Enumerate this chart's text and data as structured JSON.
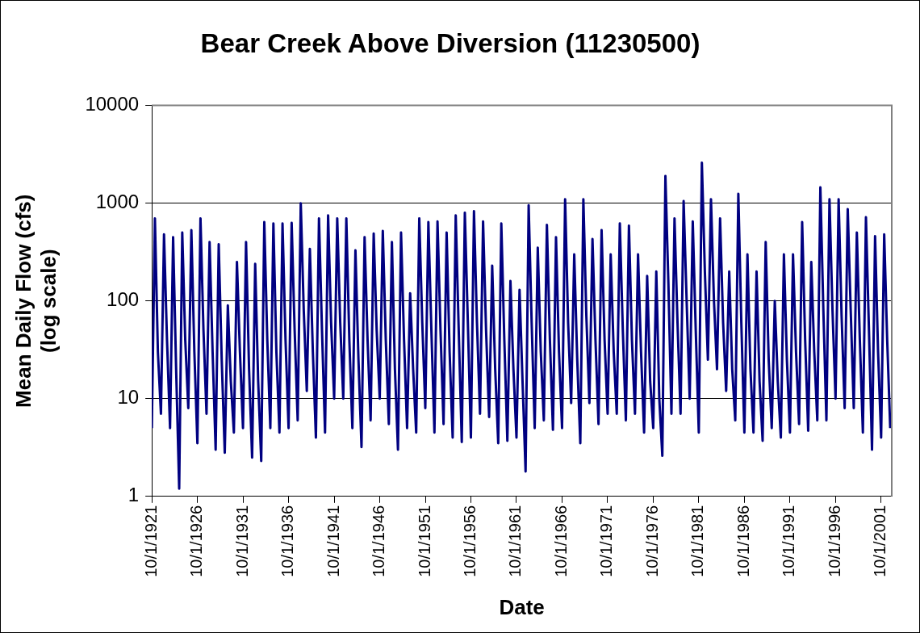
{
  "chart_data": {
    "type": "line",
    "title": "Bear Creek Above Diversion (11230500)",
    "xlabel": "Date",
    "ylabel": "Mean Daily Flow (cfs)\n(log scale)",
    "log": "y",
    "grid": "y",
    "legend": false,
    "marker": "none",
    "line_style": "solid",
    "xlim": [
      "1921-10-01",
      "2002-12-01"
    ],
    "xticks": [
      {
        "value": "1921-10-01",
        "label": "10/1/1921"
      },
      {
        "value": "1926-10-01",
        "label": "10/1/1926"
      },
      {
        "value": "1931-10-01",
        "label": "10/1/1931"
      },
      {
        "value": "1936-10-01",
        "label": "10/1/1936"
      },
      {
        "value": "1941-10-01",
        "label": "10/1/1941"
      },
      {
        "value": "1946-10-01",
        "label": "10/1/1946"
      },
      {
        "value": "1951-10-01",
        "label": "10/1/1951"
      },
      {
        "value": "1956-10-01",
        "label": "10/1/1956"
      },
      {
        "value": "1961-10-01",
        "label": "10/1/1961"
      },
      {
        "value": "1966-10-01",
        "label": "10/1/1966"
      },
      {
        "value": "1971-10-01",
        "label": "10/1/1971"
      },
      {
        "value": "1976-10-01",
        "label": "10/1/1976"
      },
      {
        "value": "1981-10-01",
        "label": "10/1/1981"
      },
      {
        "value": "1986-10-01",
        "label": "10/1/1986"
      },
      {
        "value": "1991-10-01",
        "label": "10/1/1991"
      },
      {
        "value": "1996-10-01",
        "label": "10/1/1996"
      },
      {
        "value": "2001-10-01",
        "label": "10/1/2001"
      }
    ],
    "ylim": [
      1,
      10000
    ],
    "yticks": [
      1,
      10,
      100,
      1000,
      10000
    ],
    "series": [
      {
        "color": "#000080",
        "x": [
          "1921-10",
          "1922-02",
          "1922-06",
          "1922-10",
          "1923-02",
          "1923-06",
          "1923-10",
          "1924-02",
          "1924-06",
          "1924-10",
          "1925-02",
          "1925-06",
          "1925-10",
          "1926-02",
          "1926-06",
          "1926-10",
          "1927-02",
          "1927-06",
          "1927-10",
          "1928-02",
          "1928-06",
          "1928-10",
          "1929-02",
          "1929-06",
          "1929-10",
          "1930-02",
          "1930-06",
          "1930-10",
          "1931-02",
          "1931-06",
          "1931-10",
          "1932-02",
          "1932-06",
          "1932-10",
          "1933-02",
          "1933-06",
          "1933-10",
          "1934-02",
          "1934-06",
          "1934-10",
          "1935-02",
          "1935-06",
          "1935-10",
          "1936-02",
          "1936-06",
          "1936-10",
          "1937-02",
          "1937-06",
          "1937-10",
          "1938-02",
          "1938-06",
          "1938-10",
          "1939-02",
          "1939-06",
          "1939-10",
          "1940-02",
          "1940-06",
          "1940-10",
          "1941-02",
          "1941-06",
          "1941-10",
          "1942-02",
          "1942-06",
          "1942-10",
          "1943-02",
          "1943-06",
          "1943-10",
          "1944-02",
          "1944-06",
          "1944-10",
          "1945-02",
          "1945-06",
          "1945-10",
          "1946-02",
          "1946-06",
          "1946-10",
          "1947-02",
          "1947-06",
          "1947-10",
          "1948-02",
          "1948-06",
          "1948-10",
          "1949-02",
          "1949-06",
          "1949-10",
          "1950-02",
          "1950-06",
          "1950-10",
          "1951-02",
          "1951-06",
          "1951-10",
          "1952-02",
          "1952-06",
          "1952-10",
          "1953-02",
          "1953-06",
          "1953-10",
          "1954-02",
          "1954-06",
          "1954-10",
          "1955-02",
          "1955-06",
          "1955-10",
          "1956-02",
          "1956-06",
          "1956-10",
          "1957-02",
          "1957-06",
          "1957-10",
          "1958-02",
          "1958-06",
          "1958-10",
          "1959-02",
          "1959-06",
          "1959-10",
          "1960-02",
          "1960-06",
          "1960-10",
          "1961-02",
          "1961-06",
          "1961-10",
          "1962-02",
          "1962-06",
          "1962-10",
          "1963-02",
          "1963-06",
          "1963-10",
          "1964-02",
          "1964-06",
          "1964-10",
          "1965-02",
          "1965-06",
          "1965-10",
          "1966-02",
          "1966-06",
          "1966-10",
          "1967-02",
          "1967-06",
          "1967-10",
          "1968-02",
          "1968-06",
          "1968-10",
          "1969-02",
          "1969-06",
          "1969-10",
          "1970-02",
          "1970-06",
          "1970-10",
          "1971-02",
          "1971-06",
          "1971-10",
          "1972-02",
          "1972-06",
          "1972-10",
          "1973-02",
          "1973-06",
          "1973-10",
          "1974-02",
          "1974-06",
          "1974-10",
          "1975-02",
          "1975-06",
          "1975-10",
          "1976-02",
          "1976-06",
          "1976-10",
          "1977-02",
          "1977-06",
          "1977-10",
          "1978-02",
          "1978-06",
          "1978-10",
          "1979-02",
          "1979-06",
          "1979-10",
          "1980-02",
          "1980-06",
          "1980-10",
          "1981-02",
          "1981-06",
          "1981-10",
          "1982-02",
          "1982-06",
          "1982-10",
          "1983-02",
          "1983-06",
          "1983-10",
          "1984-02",
          "1984-06",
          "1984-10",
          "1985-02",
          "1985-06",
          "1985-10",
          "1986-02",
          "1986-06",
          "1986-10",
          "1987-02",
          "1987-06",
          "1987-10",
          "1988-02",
          "1988-06",
          "1988-10",
          "1989-02",
          "1989-06",
          "1989-10",
          "1990-02",
          "1990-06",
          "1990-10",
          "1991-02",
          "1991-06",
          "1991-10",
          "1992-02",
          "1992-06",
          "1992-10",
          "1993-02",
          "1993-06",
          "1993-10",
          "1994-02",
          "1994-06",
          "1994-10",
          "1995-02",
          "1995-06",
          "1995-10",
          "1996-02",
          "1996-06",
          "1996-10",
          "1997-02",
          "1997-06",
          "1997-10",
          "1998-02",
          "1998-06",
          "1998-10",
          "1999-02",
          "1999-06",
          "1999-10",
          "2000-02",
          "2000-06",
          "2000-10",
          "2001-02",
          "2001-06",
          "2001-10",
          "2002-02",
          "2002-06",
          "2002-10"
        ],
        "values": [
          5,
          700,
          30,
          7,
          480,
          40,
          5,
          450,
          20,
          1.2,
          500,
          40,
          8,
          530,
          30,
          3.5,
          700,
          50,
          7,
          400,
          30,
          3,
          380,
          25,
          2.8,
          90,
          15,
          4.5,
          250,
          30,
          5,
          400,
          20,
          2.5,
          240,
          15,
          2.3,
          640,
          40,
          5,
          620,
          30,
          4.5,
          620,
          40,
          5,
          630,
          50,
          6,
          1000,
          80,
          12,
          340,
          30,
          4,
          700,
          50,
          4.5,
          750,
          60,
          10,
          700,
          60,
          10,
          700,
          40,
          5,
          330,
          25,
          3.2,
          450,
          40,
          6,
          490,
          50,
          10,
          520,
          40,
          5.5,
          400,
          20,
          3,
          500,
          40,
          5,
          120,
          20,
          4.5,
          700,
          60,
          8,
          640,
          50,
          4.5,
          650,
          50,
          5.5,
          500,
          30,
          4,
          750,
          50,
          3.6,
          800,
          60,
          4,
          830,
          60,
          7,
          650,
          50,
          6.5,
          230,
          20,
          3.5,
          620,
          40,
          3.7,
          160,
          20,
          4,
          130,
          15,
          1.8,
          950,
          60,
          5,
          350,
          30,
          6,
          600,
          40,
          4.8,
          450,
          30,
          5,
          1100,
          60,
          9,
          300,
          25,
          3.5,
          1100,
          70,
          9,
          430,
          40,
          5.5,
          530,
          40,
          7,
          300,
          30,
          7,
          620,
          50,
          6,
          590,
          40,
          7,
          300,
          30,
          4.5,
          180,
          15,
          5,
          200,
          10,
          2.6,
          1900,
          150,
          7,
          700,
          60,
          7,
          1050,
          100,
          10,
          650,
          50,
          4.5,
          2600,
          200,
          25,
          1100,
          100,
          20,
          700,
          60,
          12,
          200,
          20,
          6,
          1250,
          60,
          4.5,
          300,
          20,
          4.5,
          200,
          15,
          3.7,
          400,
          25,
          5,
          100,
          15,
          4,
          300,
          25,
          4.5,
          300,
          30,
          5.5,
          640,
          40,
          4.7,
          250,
          30,
          6,
          1450,
          80,
          6,
          1100,
          80,
          10,
          1100,
          70,
          8,
          870,
          80,
          8,
          500,
          40,
          4.5,
          720,
          50,
          3,
          460,
          30,
          4,
          480,
          40,
          5
        ]
      }
    ]
  }
}
